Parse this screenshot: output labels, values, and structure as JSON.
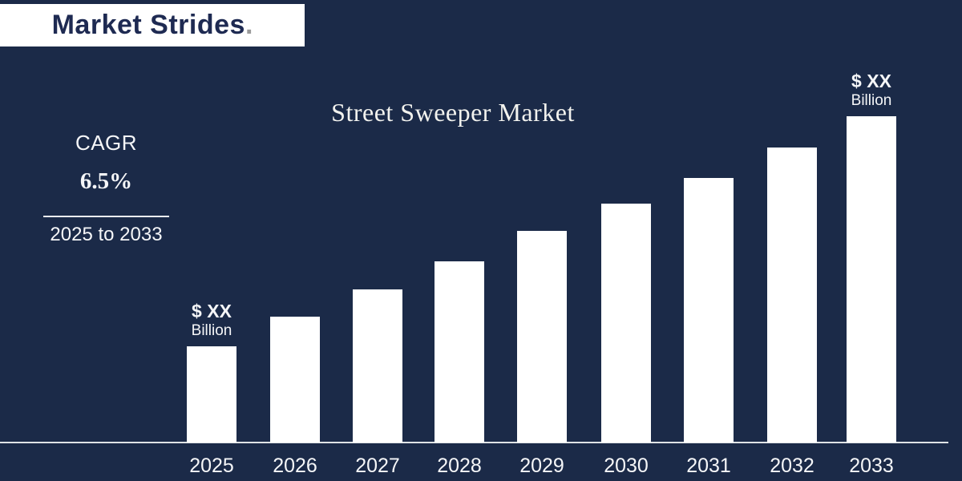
{
  "logo": {
    "text": "Market Strides",
    "dot": "."
  },
  "cagr": {
    "label": "CAGR",
    "value": "6.5%",
    "period": "2025 to 2033"
  },
  "chart_data": {
    "type": "bar",
    "title": "Street Sweeper Market",
    "categories": [
      "2025",
      "2026",
      "2027",
      "2028",
      "2029",
      "2030",
      "2031",
      "2032",
      "2033"
    ],
    "values": [
      120,
      157,
      191,
      226,
      264,
      298,
      330,
      368,
      407
    ],
    "values_note": "relative bar heights in px; actual amounts are masked on the chart as placeholders",
    "bar_labels": {
      "2025": {
        "line1": "$ XX",
        "line2": "Billion"
      },
      "2033": {
        "line1": "$ XX",
        "line2": "Billion"
      }
    },
    "xlabel": "",
    "ylabel": "",
    "legend": "none",
    "grid": false,
    "bar_color": "#ffffff",
    "axis_line_color": "#dfe3e6",
    "background_color": "#1b2a48",
    "cagr_annotation": "CAGR 6.5% (2025 to 2033)"
  }
}
